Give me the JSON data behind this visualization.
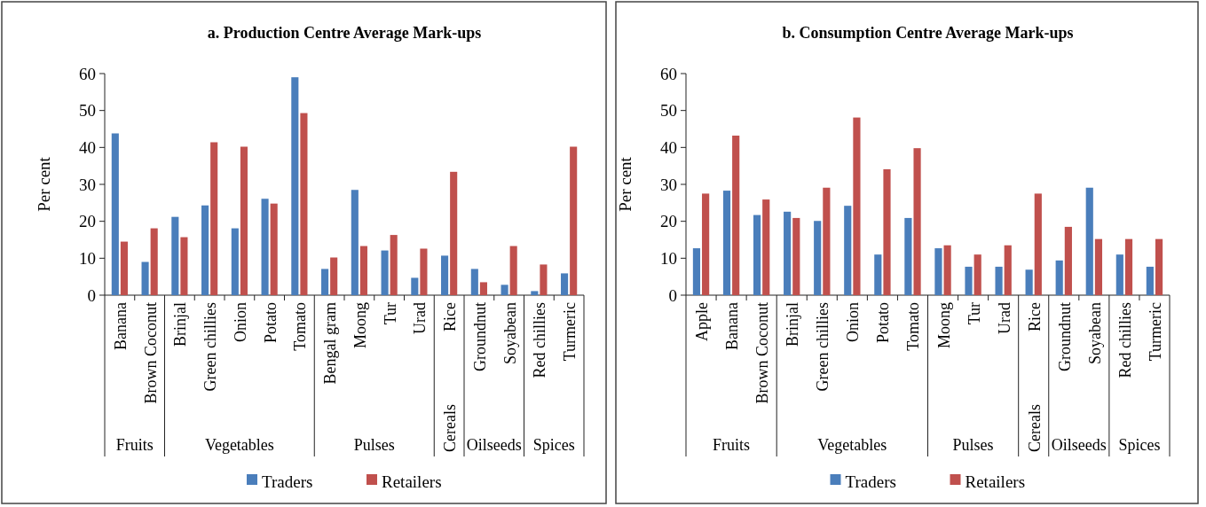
{
  "chart_data": [
    {
      "type": "bar",
      "title": "a. Production Centre Average Mark-ups",
      "ylabel": "Per cent",
      "categories": [
        "Banana",
        "Brown Coconut",
        "Brinjal",
        "Green chillies",
        "Onion",
        "Potato",
        "Tomato",
        "Bengal gram",
        "Moong",
        "Tur",
        "Urad",
        "Rice",
        "Groundnut",
        "Soyabean",
        "Red chillies",
        "Turmeric"
      ],
      "series": [
        {
          "name": "Traders",
          "color": "#4a7ebb",
          "values": [
            43.8,
            9.0,
            21.2,
            24.3,
            18.1,
            26.1,
            59.0,
            7.1,
            28.5,
            12.1,
            4.7,
            10.7,
            7.1,
            2.8,
            1.1,
            5.9
          ]
        },
        {
          "name": "Retailers",
          "color": "#c0504d",
          "values": [
            14.5,
            18.1,
            15.7,
            41.4,
            40.2,
            24.8,
            49.3,
            10.2,
            13.3,
            16.3,
            12.6,
            33.4,
            3.5,
            13.3,
            8.3,
            40.2
          ]
        }
      ],
      "ylim": [
        0,
        60
      ],
      "yticks": [
        0,
        10,
        20,
        30,
        40,
        50,
        60
      ],
      "legend": "bottom",
      "annotations": [
        "Fruits",
        "Vegetables",
        "Pulses",
        "Cereals",
        "Oilseeds",
        "Spices"
      ]
    },
    {
      "type": "bar",
      "title": "b. Consumption Centre Average Mark-ups",
      "ylabel": "Per cent",
      "categories": [
        "Apple",
        "Banana",
        "Brown Coconut",
        "Brinjal",
        "Green chillies",
        "Onion",
        "Potato",
        "Tomato",
        "Moong",
        "Tur",
        "Urad",
        "Rice",
        "Groundnut",
        "Soyabean",
        "Red chillies",
        "Turmeric"
      ],
      "series": [
        {
          "name": "Traders",
          "color": "#4a7ebb",
          "values": [
            12.7,
            28.3,
            21.7,
            22.6,
            20.1,
            24.2,
            11.0,
            20.9,
            12.7,
            7.7,
            7.7,
            6.9,
            9.4,
            29.1,
            11.0,
            7.7
          ]
        },
        {
          "name": "Retailers",
          "color": "#c0504d",
          "values": [
            27.5,
            43.2,
            25.9,
            20.9,
            29.1,
            48.1,
            34.1,
            39.8,
            13.5,
            11.0,
            13.5,
            27.5,
            18.5,
            15.2,
            15.2,
            15.2
          ]
        }
      ],
      "ylim": [
        0,
        60
      ],
      "yticks": [
        0,
        10,
        20,
        30,
        40,
        50,
        60
      ],
      "legend": "bottom",
      "annotations": [
        "Fruits",
        "Vegetables",
        "Pulses",
        "Cereals",
        "Oilseeds",
        "Spices"
      ]
    }
  ]
}
